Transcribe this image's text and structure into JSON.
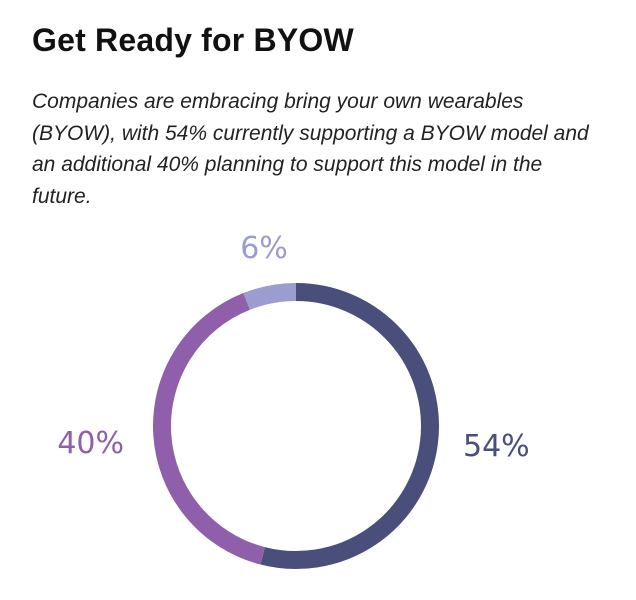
{
  "header": {
    "title": "Get Ready for BYOW",
    "description": "Companies are embracing bring your own wearables (BYOW), with 54% currently supporting a BYOW model and an additional 40% planning to support this model in the future."
  },
  "chart_data": {
    "type": "pie",
    "style": "donut",
    "categories": [
      "54%",
      "40%",
      "6%"
    ],
    "values": [
      54,
      40,
      6
    ],
    "labels": [
      "54%",
      "40%",
      "6%"
    ],
    "colors": [
      "#4a4e7a",
      "#8f5fac",
      "#9b9ccf"
    ],
    "legend": "none"
  }
}
